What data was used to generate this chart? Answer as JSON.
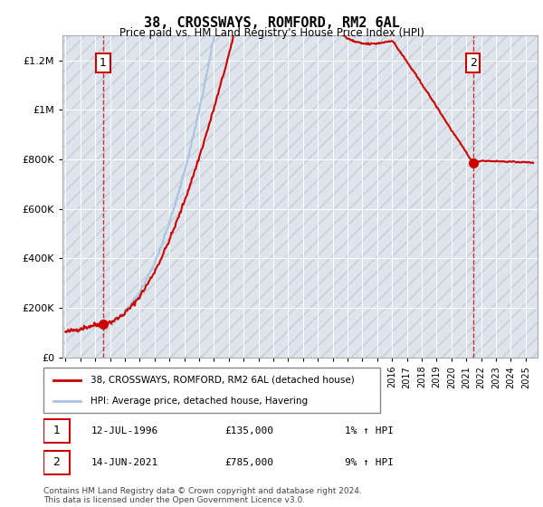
{
  "title": "38, CROSSWAYS, ROMFORD, RM2 6AL",
  "subtitle": "Price paid vs. HM Land Registry's House Price Index (HPI)",
  "sale1_date": "12-JUL-1996",
  "sale1_price": 135000,
  "sale1_hpi_pct": "1%",
  "sale2_date": "14-JUN-2021",
  "sale2_price": 785000,
  "sale2_hpi_pct": "9%",
  "legend_line1": "38, CROSSWAYS, ROMFORD, RM2 6AL (detached house)",
  "legend_line2": "HPI: Average price, detached house, Havering",
  "footer": "Contains HM Land Registry data © Crown copyright and database right 2024.\nThis data is licensed under the Open Government Licence v3.0.",
  "hpi_color": "#a8c4e0",
  "price_color": "#cc0000",
  "dashed_line_color": "#cc0000",
  "background_plot": "#e8eef4",
  "ylim": [
    0,
    1300000
  ],
  "yticks": [
    0,
    200000,
    400000,
    600000,
    800000,
    1000000,
    1200000
  ]
}
